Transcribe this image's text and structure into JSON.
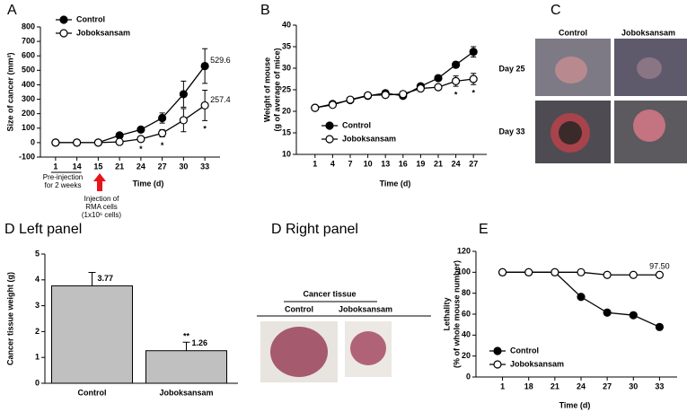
{
  "chart_data": [
    {
      "panel_label": "A",
      "type": "line",
      "ylabel": "Size of cancer (mm²)",
      "xlabel": "Time (d)",
      "categories": [
        "1",
        "14",
        "15",
        "21",
        "24",
        "27",
        "30",
        "33"
      ],
      "ylim": [
        -100,
        800
      ],
      "yticks": [
        -100,
        0,
        100,
        200,
        300,
        400,
        500,
        600,
        700,
        800
      ],
      "legend": "upper left",
      "series": [
        {
          "name": "Control",
          "color": "#000000",
          "values": [
            0,
            0,
            0,
            50,
            90,
            170,
            335,
            529.6
          ],
          "errors": [
            0,
            0,
            0,
            10,
            15,
            35,
            90,
            120
          ],
          "value_labels": [
            null,
            null,
            null,
            null,
            null,
            null,
            null,
            "529.6"
          ]
        },
        {
          "name": "Joboksansam",
          "color": "#ffffff",
          "values": [
            0,
            0,
            0,
            5,
            25,
            65,
            155,
            257.4
          ],
          "errors": [
            0,
            0,
            0,
            5,
            10,
            25,
            80,
            105
          ],
          "value_labels": [
            null,
            null,
            null,
            null,
            null,
            null,
            null,
            "257.4"
          ]
        }
      ],
      "significance": [
        {
          "text": "*",
          "category": "24"
        },
        {
          "text": "*",
          "category": "27"
        },
        {
          "text": "*",
          "category": "33"
        }
      ],
      "notes": {
        "pre_injection": [
          "Pre-injection",
          "for 2 weeks"
        ],
        "injection": [
          "Injection of",
          "RMA cells",
          "(1x10⁶ cells)"
        ]
      }
    },
    {
      "panel_label": "B",
      "type": "line",
      "ylabel": [
        "Weight of mouse",
        "(g of average of mice)"
      ],
      "xlabel": "Time (d)",
      "categories": [
        "1",
        "4",
        "7",
        "10",
        "13",
        "16",
        "19",
        "21",
        "24",
        "27"
      ],
      "ylim": [
        10,
        40
      ],
      "yticks": [
        10,
        15,
        20,
        25,
        30,
        35,
        40
      ],
      "legend": "lower left",
      "series": [
        {
          "name": "Control",
          "color": "#000000",
          "values": [
            20.8,
            21.7,
            22.6,
            23.6,
            24.2,
            23.6,
            25.8,
            27.7,
            30.8,
            33.8
          ],
          "errors": [
            0.3,
            0.3,
            0.3,
            0.3,
            0.4,
            0.4,
            0.4,
            0.5,
            0.7,
            1.2
          ]
        },
        {
          "name": "Joboksansam",
          "color": "#ffffff",
          "values": [
            20.8,
            21.5,
            22.7,
            23.7,
            23.8,
            24.0,
            25.3,
            25.6,
            27.0,
            27.5
          ],
          "errors": [
            0.3,
            0.3,
            0.3,
            0.3,
            0.3,
            0.4,
            0.4,
            0.5,
            1.2,
            1.3
          ]
        }
      ],
      "significance": [
        {
          "text": "*",
          "category": "24"
        },
        {
          "text": "*",
          "category": "27"
        }
      ]
    },
    {
      "panel_label": "D Left panel",
      "type": "bar",
      "ylabel": "Cancer tissue weight (g)",
      "categories": [
        "Control",
        "Joboksansam"
      ],
      "values": [
        3.77,
        1.26
      ],
      "errors": [
        0.52,
        0.33
      ],
      "color": "#c0c0c0",
      "ylim": [
        0,
        5
      ],
      "yticks": [
        0,
        1,
        2,
        3,
        4,
        5
      ],
      "significance": [
        {
          "text": "**",
          "category": "Joboksansam"
        }
      ]
    },
    {
      "panel_label": "E",
      "type": "line",
      "ylabel": [
        "Lethality",
        "(% of whole mouse number)"
      ],
      "xlabel": "Time (d)",
      "categories": [
        "1",
        "18",
        "21",
        "24",
        "27",
        "30",
        "33"
      ],
      "ylim": [
        0,
        120
      ],
      "yticks": [
        0,
        20,
        40,
        60,
        80,
        100,
        120
      ],
      "legend": "lower left",
      "series": [
        {
          "name": "Control",
          "color": "#000000",
          "values": [
            100,
            100,
            100,
            76.5,
            61.5,
            59,
            47.73
          ]
        },
        {
          "name": "Joboksansam",
          "color": "#ffffff",
          "values": [
            100,
            100,
            100,
            100,
            97.5,
            97.5,
            97.5
          ],
          "value_labels": [
            null,
            null,
            null,
            null,
            null,
            null,
            "97.50"
          ]
        }
      ]
    }
  ],
  "photo_panels": {
    "C": {
      "label": "C",
      "columns": [
        "Control",
        "Joboksansam"
      ],
      "rows": [
        "Day 25",
        "Day 33"
      ]
    },
    "D_right": {
      "label": "D Right panel",
      "heading": "Cancer tissue",
      "columns": [
        "Control",
        "Joboksansam"
      ]
    }
  }
}
